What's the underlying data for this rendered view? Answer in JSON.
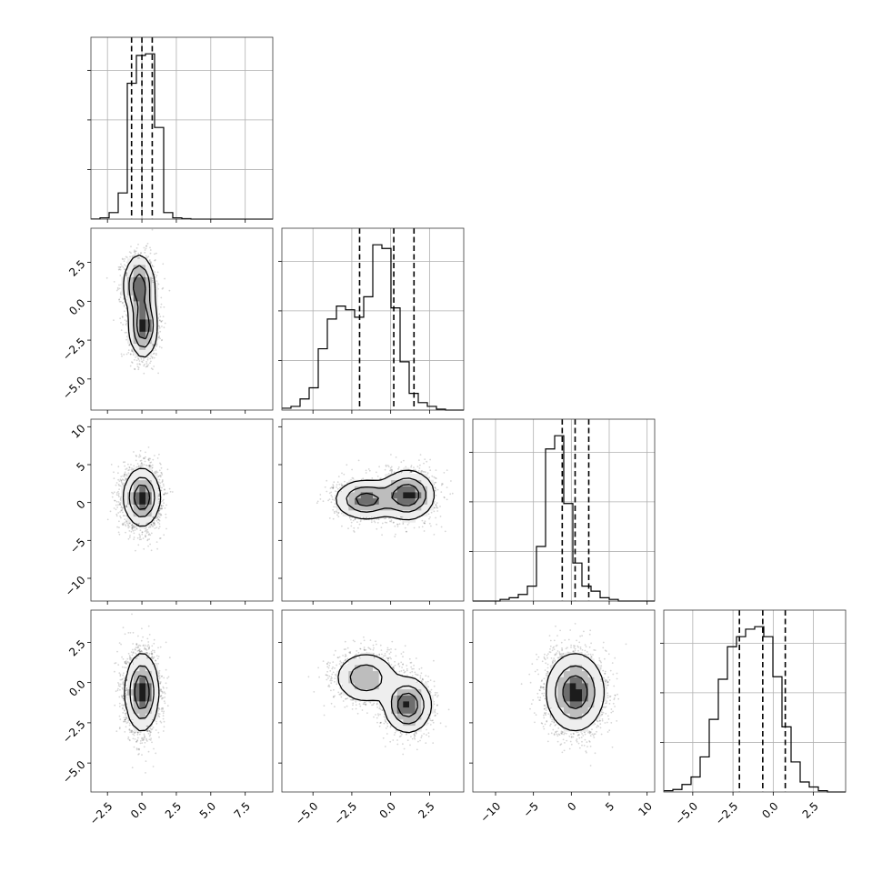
{
  "chart_data": {
    "type": "corner",
    "title": "",
    "grid": true,
    "parameters": [
      {
        "range": [
          -3.7,
          9.5
        ],
        "ticks": [
          -2.5,
          0.0,
          2.5,
          5.0,
          7.5
        ],
        "tick_labels": [
          "−2.5",
          "0.0",
          "2.5",
          "5.0",
          "7.5"
        ],
        "quantiles": [
          -0.75,
          0.0,
          0.75
        ],
        "hist": {
          "edges_start": -3.7,
          "bin_width": 0.66,
          "counts": [
            1,
            8,
            40,
            160,
            830,
            1000,
            1010,
            560,
            40,
            8,
            3,
            0,
            0,
            0,
            0,
            0,
            0,
            0,
            0,
            0
          ]
        }
      },
      {
        "range": [
          -7.0,
          4.7
        ],
        "ticks": [
          -5.0,
          -2.5,
          0.0,
          2.5
        ],
        "tick_labels": [
          "−5.0",
          "−2.5",
          "0.0",
          "2.5"
        ],
        "quantiles": [
          -2.0,
          0.2,
          1.5
        ],
        "hist": {
          "edges_start": -7.0,
          "bin_width": 0.585,
          "counts": [
            10,
            20,
            60,
            120,
            330,
            490,
            560,
            540,
            500,
            610,
            890,
            870,
            550,
            260,
            90,
            40,
            20,
            5,
            0,
            0
          ]
        }
      },
      {
        "range": [
          -13.0,
          11.0
        ],
        "ticks": [
          -10,
          -5,
          0,
          5,
          10
        ],
        "tick_labels": [
          "−10",
          "−5",
          "0",
          "5",
          "10"
        ],
        "quantiles": [
          -1.2,
          0.5,
          2.3
        ],
        "hist": {
          "edges_start": -13.0,
          "bin_width": 1.2,
          "counts": [
            0,
            0,
            0,
            10,
            20,
            40,
            90,
            330,
            920,
            1000,
            590,
            230,
            90,
            60,
            20,
            10,
            0,
            0,
            0,
            0
          ]
        }
      },
      {
        "range": [
          -6.8,
          4.5
        ],
        "ticks": [
          -5.0,
          -2.5,
          0.0,
          2.5
        ],
        "tick_labels": [
          "−5.0",
          "−2.5",
          "0.0",
          "2.5"
        ],
        "quantiles": [
          -2.1,
          -0.65,
          0.75
        ],
        "hist": {
          "edges_start": -6.8,
          "bin_width": 0.565,
          "counts": [
            5,
            10,
            30,
            60,
            140,
            290,
            450,
            580,
            620,
            650,
            660,
            620,
            460,
            260,
            120,
            40,
            20,
            5,
            0,
            0
          ]
        }
      }
    ],
    "row_axis_ticks": {
      "1": {
        "ticks": [
          -5.0,
          -2.5,
          0.0,
          2.5
        ],
        "tick_labels": [
          "−5.0",
          "−2.5",
          "0.0",
          "2.5"
        ]
      },
      "2": {
        "ticks": [
          -10,
          -5,
          0,
          5,
          10
        ],
        "tick_labels": [
          "−10",
          "−5",
          "0",
          "5",
          "10"
        ]
      },
      "3": {
        "ticks": [
          -5.0,
          -2.5,
          0.0,
          2.5
        ],
        "tick_labels": [
          "−5.0",
          "−2.5",
          "0.0",
          "2.5"
        ]
      }
    },
    "scatter_pairs": [
      {
        "row": 1,
        "col": 0,
        "components": [
          {
            "w": 0.5,
            "mx": -0.2,
            "my": 1.0,
            "sx": 0.55,
            "sy": 1.0
          },
          {
            "w": 0.5,
            "mx": 0.1,
            "my": -1.6,
            "sx": 0.5,
            "sy": 1.0
          }
        ]
      },
      {
        "row": 2,
        "col": 0,
        "components": [
          {
            "w": 1.0,
            "mx": 0.0,
            "my": 0.7,
            "sx": 0.65,
            "sy": 1.9
          }
        ]
      },
      {
        "row": 2,
        "col": 1,
        "components": [
          {
            "w": 0.45,
            "mx": -1.6,
            "my": 0.4,
            "sx": 1.0,
            "sy": 1.3
          },
          {
            "w": 0.55,
            "mx": 1.1,
            "my": 1.0,
            "sx": 0.85,
            "sy": 1.6
          }
        ]
      },
      {
        "row": 3,
        "col": 0,
        "components": [
          {
            "w": 1.0,
            "mx": 0.0,
            "my": -0.6,
            "sx": 0.6,
            "sy": 1.2
          }
        ]
      },
      {
        "row": 3,
        "col": 1,
        "components": [
          {
            "w": 0.45,
            "mx": -1.6,
            "my": 0.3,
            "sx": 1.0,
            "sy": 0.8
          },
          {
            "w": 0.55,
            "mx": 1.1,
            "my": -1.4,
            "sx": 0.75,
            "sy": 0.85
          }
        ]
      },
      {
        "row": 3,
        "col": 2,
        "components": [
          {
            "w": 1.0,
            "mx": 0.5,
            "my": -0.6,
            "sx": 1.9,
            "sy": 1.2
          }
        ]
      }
    ]
  }
}
